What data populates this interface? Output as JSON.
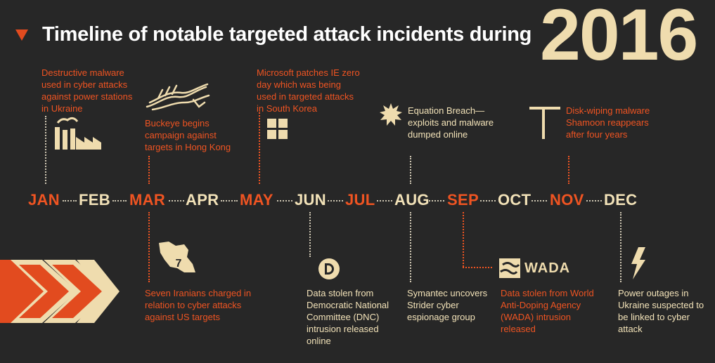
{
  "title": "Timeline of notable targeted attack incidents during",
  "year": "2016",
  "colors": {
    "accent": "#ef5422",
    "cream": "#f2e2b8",
    "background": "#272727"
  },
  "months": [
    "JAN",
    "FEB",
    "MAR",
    "APR",
    "MAY",
    "JUN",
    "JUL",
    "AUG",
    "SEP",
    "OCT",
    "NOV",
    "DEC"
  ],
  "events_top": {
    "jan": "Destructive malware used in cyber attacks against power stations in Ukraine",
    "mar": "Buckeye begins campaign against targets in Hong Kong",
    "may": "Microsoft patches IE zero day which was being used in targeted attacks in South Korea",
    "aug": "Equation Breach—exploits and malware dumped online",
    "nov": "Disk-wiping malware Shamoon reappears after four years"
  },
  "events_bottom": {
    "mar": "Seven Iranians charged in relation to cyber attacks against US targets",
    "mar_badge": "7",
    "jun": "Data stolen from Democratic National Committee (DNC) intrusion released online",
    "aug": "Symantec uncovers Strider cyber espionage group",
    "sep": "Data stolen from World Anti-Doping Agency (WADA) intrusion released",
    "sep_logo": "WADA",
    "dec": "Power outages in Ukraine suspected to be linked to cyber attack"
  },
  "icons": [
    "factory-icon",
    "dragon-icon",
    "windows-icon",
    "starburst-icon",
    "t-shaped-icon",
    "iran-map-icon",
    "dnc-logo-icon",
    "wada-logo-icon",
    "lightning-icon",
    "chevron-arrows-icon"
  ]
}
